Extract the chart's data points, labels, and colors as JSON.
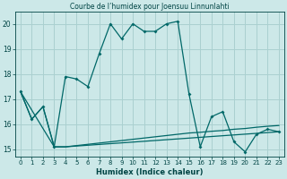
{
  "title": "Courbe de l’humidex pour Joensuu Linnunlahti",
  "xlabel": "Humidex (Indice chaleur)",
  "bg_color": "#cce8e8",
  "grid_color": "#aad0d0",
  "line_color": "#006868",
  "text_color": "#004444",
  "xlim_min": -0.5,
  "xlim_max": 23.5,
  "ylim_min": 14.7,
  "ylim_max": 20.5,
  "yticks": [
    15,
    16,
    17,
    18,
    19,
    20
  ],
  "xticks": [
    0,
    1,
    2,
    3,
    4,
    5,
    6,
    7,
    8,
    9,
    10,
    11,
    12,
    13,
    14,
    15,
    16,
    17,
    18,
    19,
    20,
    21,
    22,
    23
  ],
  "series1_x": [
    0,
    1,
    2,
    3,
    4,
    5,
    6,
    7,
    8,
    9,
    10,
    11,
    12,
    13,
    14,
    15,
    16,
    17,
    18,
    19,
    20,
    21,
    22,
    23
  ],
  "series1_y": [
    17.3,
    16.2,
    16.7,
    15.1,
    17.9,
    17.8,
    17.5,
    18.8,
    20.0,
    19.4,
    20.0,
    19.7,
    19.7,
    20.0,
    20.1,
    17.2,
    15.1,
    16.3,
    16.5,
    15.3,
    14.9,
    15.6,
    15.8,
    15.7
  ],
  "series2_x": [
    0,
    3,
    4,
    5,
    6,
    7,
    8,
    9,
    10,
    11,
    12,
    13,
    14,
    15,
    16,
    17,
    18,
    19,
    20,
    21,
    22,
    23
  ],
  "series2_y": [
    17.3,
    15.1,
    15.1,
    15.15,
    15.2,
    15.25,
    15.3,
    15.35,
    15.4,
    15.45,
    15.5,
    15.55,
    15.6,
    15.65,
    15.68,
    15.72,
    15.75,
    15.8,
    15.83,
    15.88,
    15.92,
    15.95
  ],
  "series3_x": [
    0,
    1,
    2,
    3,
    4,
    23
  ],
  "series3_y": [
    17.3,
    16.2,
    16.7,
    15.1,
    15.1,
    15.7
  ]
}
